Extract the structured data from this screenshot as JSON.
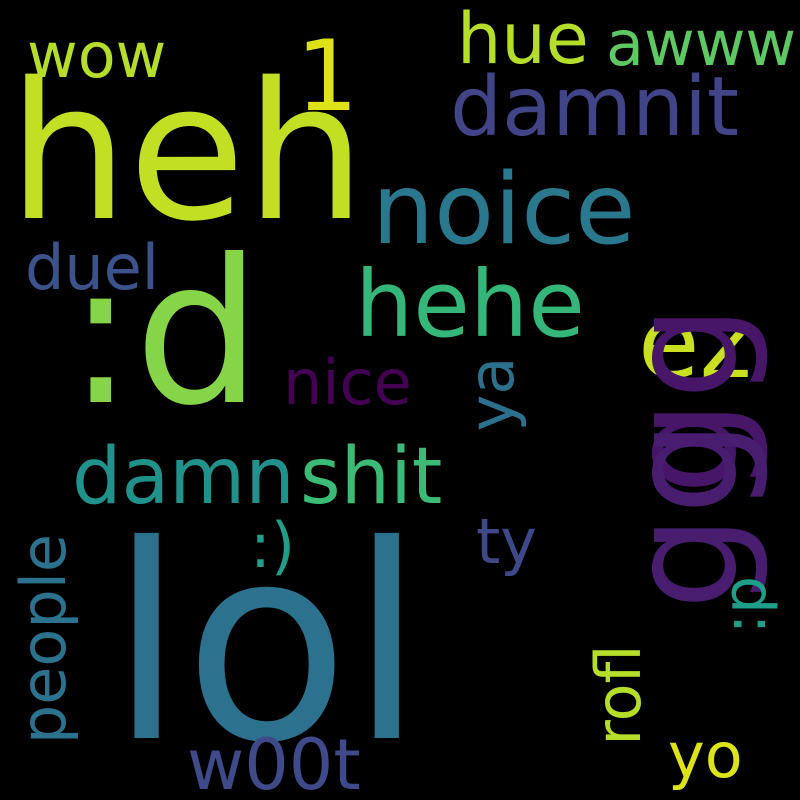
{
  "cloud": {
    "background": "#000000",
    "words": {
      "lol": {
        "text": "lol",
        "color": "#2c728e"
      },
      "heh": {
        "text": "heh",
        "color": "#c2df23"
      },
      "d": {
        "text": ":d",
        "color": "#86d549"
      },
      "noice": {
        "text": "noice",
        "color": "#2a788e"
      },
      "hehe": {
        "text": "hehe",
        "color": "#35b779"
      },
      "ez": {
        "text": "ez",
        "color": "#c8e020"
      },
      "damnit": {
        "text": "damnit",
        "color": "#414487"
      },
      "one": {
        "text": "1",
        "color": "#dde318"
      },
      "hue": {
        "text": "hue",
        "color": "#b5de2b"
      },
      "awww": {
        "text": "awww",
        "color": "#5ec962"
      },
      "wow": {
        "text": "wow",
        "color": "#b5de2b"
      },
      "duel": {
        "text": "duel",
        "color": "#3b528b"
      },
      "nice": {
        "text": "nice",
        "color": "#440154"
      },
      "damn": {
        "text": "damn",
        "color": "#21918c"
      },
      "shit": {
        "text": "shit",
        "color": "#3bbb75"
      },
      "ty": {
        "text": "ty",
        "color": "#3e4989"
      },
      "smile": {
        "text": ":)",
        "color": "#1f9e89"
      },
      "w00t": {
        "text": "w00t",
        "color": "#3e4a89"
      },
      "yo": {
        "text": "yo",
        "color": "#dde318"
      },
      "gg1": {
        "text": "gg",
        "color": "#481668"
      },
      "gg2": {
        "text": "gg",
        "color": "#481c6e"
      },
      "ya": {
        "text": "ya",
        "color": "#2d708e"
      },
      "p": {
        "text": ":p",
        "color": "#1f9e89"
      },
      "rofl": {
        "text": "rofl",
        "color": "#b5de2b"
      },
      "people": {
        "text": "people",
        "color": "#2c728e"
      }
    }
  }
}
